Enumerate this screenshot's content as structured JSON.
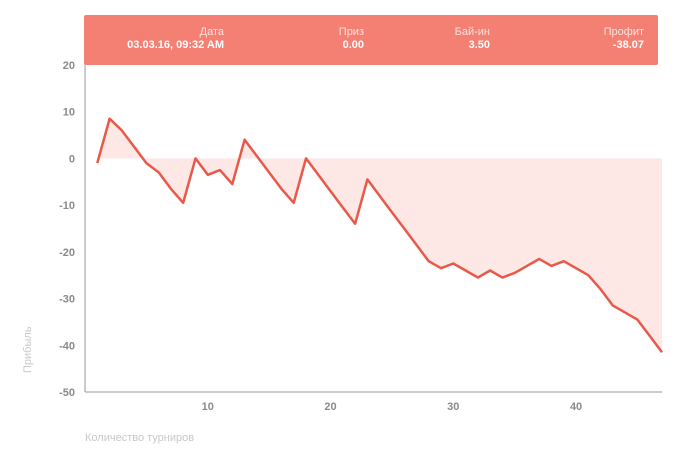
{
  "tooltip": {
    "date_label": "Дата",
    "date_value": "03.03.16, 09:32 AM",
    "prize_label": "Приз",
    "prize_value": "0.00",
    "buyin_label": "Бай-ин",
    "buyin_value": "3.50",
    "profit_label": "Профит",
    "profit_value": "-38.07"
  },
  "chart_data": {
    "type": "line",
    "title": "",
    "xlabel": "Количество турниров",
    "ylabel": "Прибыль",
    "xlim": [
      0,
      47
    ],
    "ylim": [
      -50,
      20
    ],
    "xticks": [
      10,
      20,
      30,
      40
    ],
    "yticks": [
      20,
      10,
      0,
      -10,
      -20,
      -30,
      -40,
      -50
    ],
    "line_color": "#e8594a",
    "fill_color": "#fde8e6",
    "series": [
      {
        "x": [
          1,
          2,
          3,
          4,
          5,
          6,
          7,
          8,
          9,
          10,
          11,
          12,
          13,
          14,
          15,
          16,
          17,
          18,
          19,
          20,
          21,
          22,
          23,
          24,
          25,
          26,
          27,
          28,
          29,
          30,
          31,
          32,
          33,
          34,
          35,
          36,
          37,
          38,
          39,
          40,
          41,
          42,
          43,
          44,
          45,
          46,
          47
        ],
        "y": [
          -1,
          8.5,
          6,
          2.5,
          -1,
          -3,
          -6.5,
          -9.5,
          0,
          -3.5,
          -2.5,
          -5.5,
          4,
          0.5,
          -3,
          -6.5,
          -9.5,
          0,
          -3.5,
          -7,
          -10.5,
          -14,
          -4.5,
          -8,
          -11.5,
          -15,
          -18.5,
          -22,
          -23.5,
          -22.5,
          -24,
          -25.5,
          -24,
          -25.5,
          -24.5,
          -23,
          -21.5,
          -23,
          -22,
          -23.5,
          -25,
          -28,
          -31.5,
          -33,
          -34.5,
          -38,
          -41.5
        ]
      }
    ]
  }
}
